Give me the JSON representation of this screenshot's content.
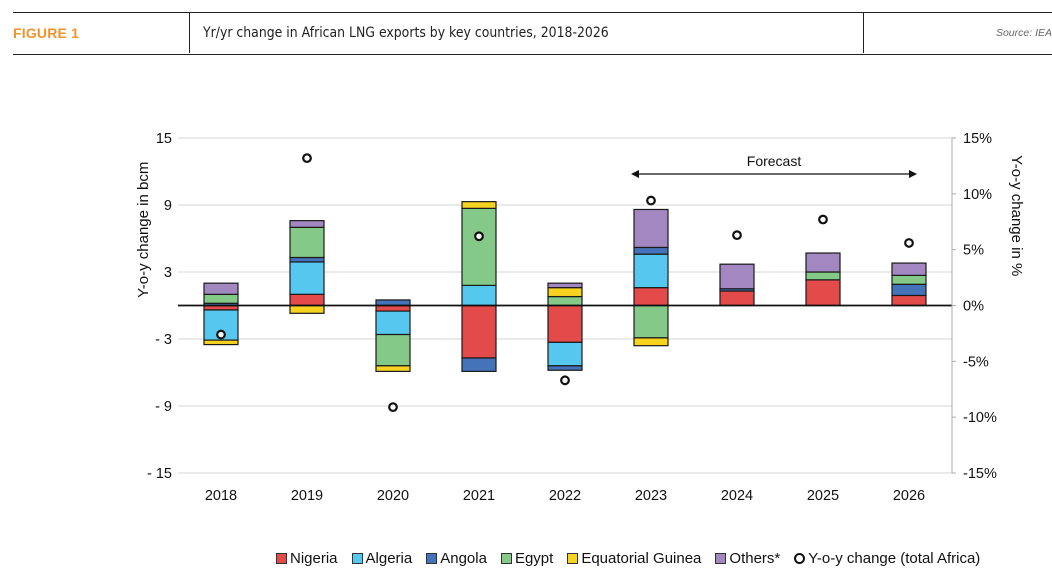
{
  "header": {
    "figure_label": "FIGURE 1",
    "title": "Yr/yr change in African LNG exports by key countries, 2018-2026",
    "source": "Source: IEA"
  },
  "chart_data": {
    "type": "bar",
    "stacked": true,
    "title": "Yr/yr change in African LNG exports by key countries, 2018-2026",
    "categories": [
      "2018",
      "2019",
      "2020",
      "2021",
      "2022",
      "2023",
      "2024",
      "2025",
      "2026"
    ],
    "ylabel": "Y-o-y change in bcm",
    "ylabel_right": "Y-o-y change in %",
    "ylim": [
      -15,
      15
    ],
    "yticks": [
      15,
      9,
      3,
      -3,
      -9,
      -15
    ],
    "ytick_labels": [
      "15",
      "9",
      "3",
      "- 3",
      "- 9",
      "- 15"
    ],
    "ylim_right": [
      -15,
      15
    ],
    "yticks_right": [
      15,
      10,
      5,
      0,
      -5,
      -10,
      -15
    ],
    "ytick_labels_right": [
      "15%",
      "10%",
      "5%",
      "0%",
      "-5%",
      "-10%",
      "-15%"
    ],
    "grid": true,
    "legend_position": "bottom",
    "annotation": {
      "text": "Forecast",
      "from": "2023",
      "to": "2026",
      "style": "double-arrow"
    },
    "series": [
      {
        "name": "Nigeria",
        "color": "#e34a4a",
        "values": [
          -0.4,
          1.0,
          -0.5,
          -4.7,
          -3.3,
          1.6,
          1.3,
          2.3,
          0.9
        ]
      },
      {
        "name": "Algeria",
        "color": "#56c8f0",
        "values": [
          -2.7,
          2.9,
          -2.1,
          1.8,
          -2.1,
          3.0,
          0.0,
          0.0,
          0.0
        ]
      },
      {
        "name": "Angola",
        "color": "#4473ba",
        "values": [
          0.2,
          0.4,
          0.5,
          -1.2,
          -0.4,
          0.6,
          0.2,
          0.0,
          1.0
        ]
      },
      {
        "name": "Egypt",
        "color": "#84c987",
        "values": [
          0.8,
          2.7,
          -2.8,
          6.9,
          0.8,
          -2.9,
          0.0,
          0.7,
          0.8
        ]
      },
      {
        "name": "Equatorial Guinea",
        "color": "#f7d21f",
        "values": [
          -0.4,
          -0.7,
          -0.5,
          0.6,
          0.8,
          -0.7,
          0.0,
          0.0,
          0.0
        ]
      },
      {
        "name": "Others*",
        "color": "#a287c1",
        "values": [
          1.0,
          0.6,
          0.0,
          0.0,
          0.4,
          3.4,
          2.2,
          1.7,
          1.1
        ]
      }
    ],
    "scatter_series": {
      "name": "Y-o-y change (total Africa)",
      "axis": "right",
      "unit": "%",
      "values": [
        -2.6,
        13.2,
        -9.1,
        6.2,
        -6.7,
        9.4,
        6.3,
        7.7,
        5.6
      ]
    }
  },
  "legend": [
    {
      "label": "Nigeria",
      "color": "#e34a4a",
      "kind": "square"
    },
    {
      "label": "Algeria",
      "color": "#56c8f0",
      "kind": "square"
    },
    {
      "label": "Angola",
      "color": "#4473ba",
      "kind": "square"
    },
    {
      "label": "Egypt",
      "color": "#84c987",
      "kind": "square"
    },
    {
      "label": "Equatorial Guinea",
      "color": "#f7d21f",
      "kind": "square"
    },
    {
      "label": "Others*",
      "color": "#a287c1",
      "kind": "square"
    },
    {
      "label": "Y-o-y change (total Africa)",
      "color": "#111111",
      "kind": "circle"
    }
  ]
}
